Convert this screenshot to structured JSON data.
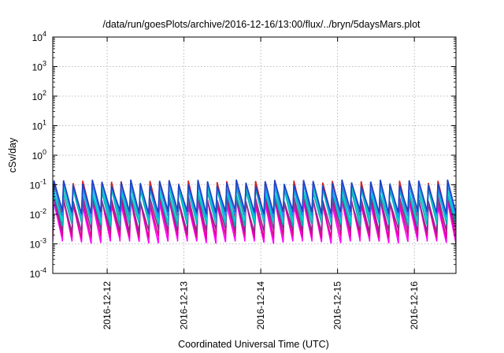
{
  "chart_data": {
    "type": "line",
    "title": "/data/run/goesPlots/archive/2016-12-16/13:00/flux/../bryn/5daysMars.plot",
    "xlabel": "Coordinated Universal Time (UTC)",
    "ylabel": "cSv/day",
    "yscale": "log",
    "ylim": [
      0.0001,
      10000
    ],
    "y_tick_labels": [
      {
        "base": "10",
        "exp": "-4",
        "value": 0.0001
      },
      {
        "base": "10",
        "exp": "-3",
        "value": 0.001
      },
      {
        "base": "10",
        "exp": "-2",
        "value": 0.01
      },
      {
        "base": "10",
        "exp": "-1",
        "value": 0.1
      },
      {
        "base": "10",
        "exp": "0",
        "value": 1
      },
      {
        "base": "10",
        "exp": "1",
        "value": 10
      },
      {
        "base": "10",
        "exp": "2",
        "value": 100
      },
      {
        "base": "10",
        "exp": "3",
        "value": 1000
      },
      {
        "base": "10",
        "exp": "4",
        "value": 10000
      }
    ],
    "xlim": [
      "2016-12-11 07:00",
      "2016-12-16 13:00"
    ],
    "x_ticks": [
      "2016-12-12",
      "2016-12-13",
      "2016-12-14",
      "2016-12-15",
      "2016-12-16"
    ],
    "grid": true,
    "sawtooth_period_hours": 3,
    "series": [
      {
        "color": "#ff00ff",
        "peak": 0.025,
        "trough": 0.0012
      },
      {
        "color": "#e0008a",
        "peak": 0.03,
        "trough": 0.0018
      },
      {
        "color": "#8b2a8b",
        "peak": 0.035,
        "trough": 0.0028
      },
      {
        "color": "#d42020",
        "peak": 0.11,
        "trough": 0.0085
      },
      {
        "color": "#00b0b0",
        "peak": 0.06,
        "trough": 0.0045
      },
      {
        "color": "#00d0d0",
        "peak": 0.08,
        "trough": 0.006
      },
      {
        "color": "#1e90ff",
        "peak": 0.1,
        "trough": 0.009
      },
      {
        "color": "#2040c0",
        "peak": 0.12,
        "trough": 0.012
      }
    ]
  }
}
